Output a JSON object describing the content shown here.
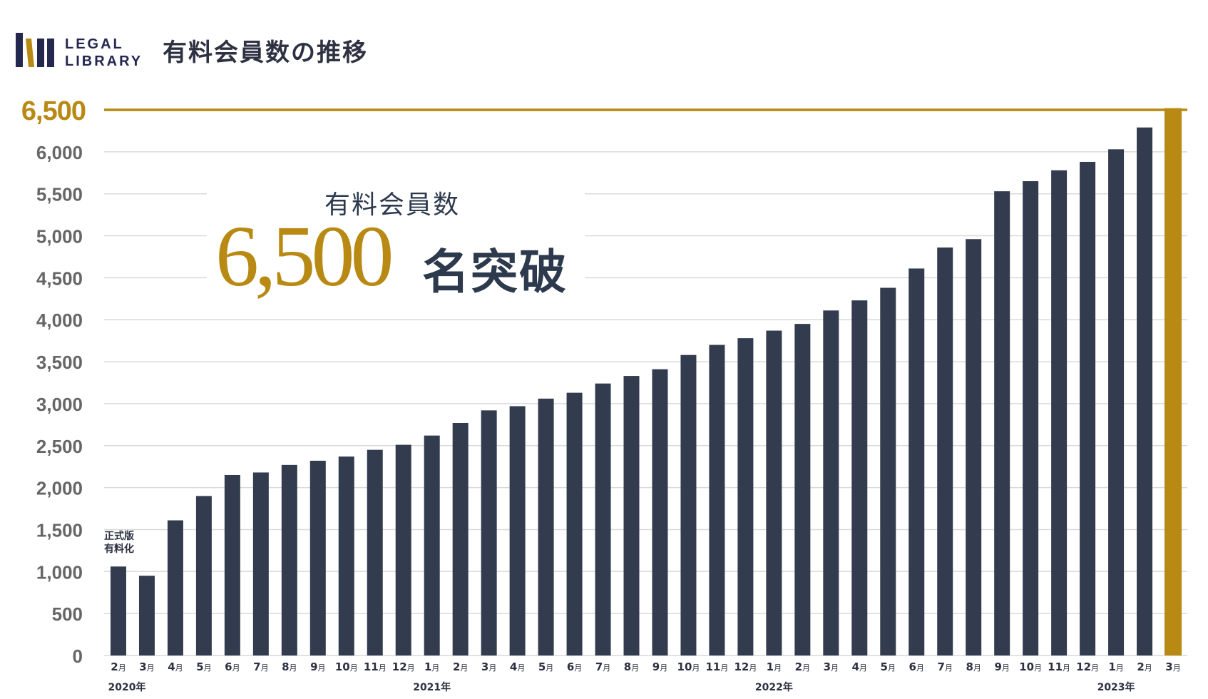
{
  "logo": {
    "line1": "LEGAL",
    "line2": "LIBRARY"
  },
  "title": "有料会員数の推移",
  "callout": {
    "label": "有料会員数",
    "number": "6,500",
    "suffix": "名突破"
  },
  "colors": {
    "bar": "#323c4e",
    "highlight": "#b88a14",
    "grid": "#d9d9d9",
    "axis_text": "#666666"
  },
  "chart_data": {
    "type": "bar",
    "title": "有料会員数の推移",
    "categories": [
      "2月",
      "3月",
      "4月",
      "5月",
      "6月",
      "7月",
      "8月",
      "9月",
      "10月",
      "11月",
      "12月",
      "1月",
      "2月",
      "3月",
      "4月",
      "5月",
      "6月",
      "7月",
      "8月",
      "9月",
      "10月",
      "11月",
      "12月",
      "1月",
      "2月",
      "3月",
      "4月",
      "5月",
      "6月",
      "7月",
      "8月",
      "9月",
      "10月",
      "11月",
      "12月",
      "1月",
      "2月",
      "3月"
    ],
    "values": [
      1060,
      950,
      1610,
      1900,
      2150,
      2180,
      2270,
      2320,
      2370,
      2450,
      2510,
      2620,
      2770,
      2920,
      2970,
      3060,
      3130,
      3240,
      3330,
      3410,
      3580,
      3700,
      3780,
      3870,
      3950,
      4110,
      4230,
      4380,
      4610,
      4860,
      4960,
      5530,
      5650,
      5780,
      5880,
      6030,
      6290,
      6520
    ],
    "year_labels": [
      {
        "label": "2020年",
        "at_index": 0
      },
      {
        "label": "2021年",
        "at_index": 11
      },
      {
        "label": "2022年",
        "at_index": 23
      },
      {
        "label": "2023年",
        "at_index": 35
      }
    ],
    "y_ticks": [
      0,
      500,
      1000,
      1500,
      2000,
      2500,
      3000,
      3500,
      4000,
      4500,
      5000,
      5500,
      6000
    ],
    "y_tick_labels": [
      "0",
      "500",
      "1,000",
      "1,500",
      "2,000",
      "2,500",
      "3,000",
      "3,500",
      "4,000",
      "4,500",
      "5,000",
      "5,500",
      "6,000"
    ],
    "target_line": {
      "value": 6500,
      "label": "6,500"
    },
    "highlight_index": 37,
    "first_bar_annotation": [
      "正式版",
      "有料化"
    ],
    "ylim": [
      0,
      6500
    ],
    "grid": true
  }
}
